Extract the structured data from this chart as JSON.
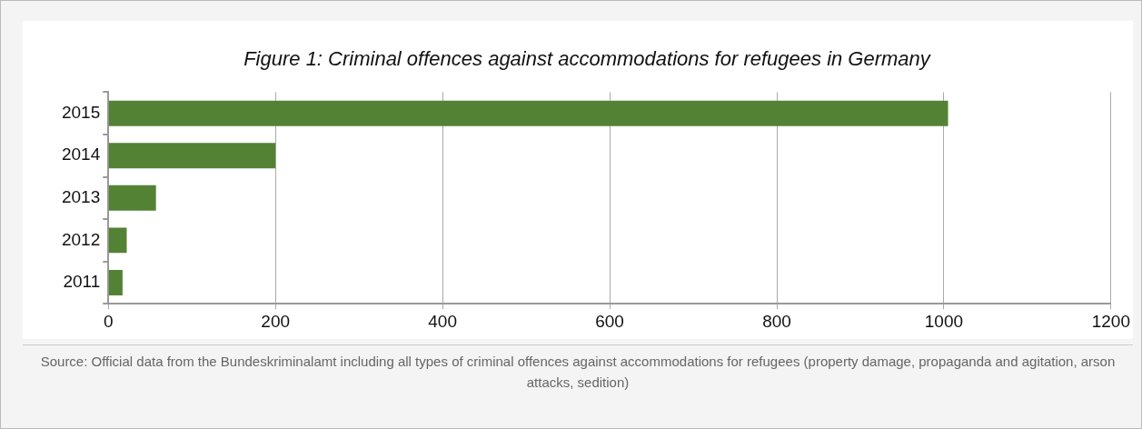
{
  "chart_data": {
    "type": "bar",
    "orientation": "horizontal",
    "title": "Figure 1: Criminal offences against accommodations for refugees in Germany",
    "categories": [
      "2015",
      "2014",
      "2013",
      "2012",
      "2011"
    ],
    "values": [
      1005,
      200,
      57,
      22,
      17
    ],
    "color": "#548235",
    "xlim": [
      0,
      1200
    ],
    "xticks": [
      0,
      200,
      400,
      600,
      800,
      1000,
      1200
    ],
    "grid": "x",
    "annotations": [
      "Source: Official data from the Bundeskriminalamt including all types of criminal offences against accommodations for refugees (property damage, propaganda and agitation, arson attacks, sedition)"
    ]
  }
}
